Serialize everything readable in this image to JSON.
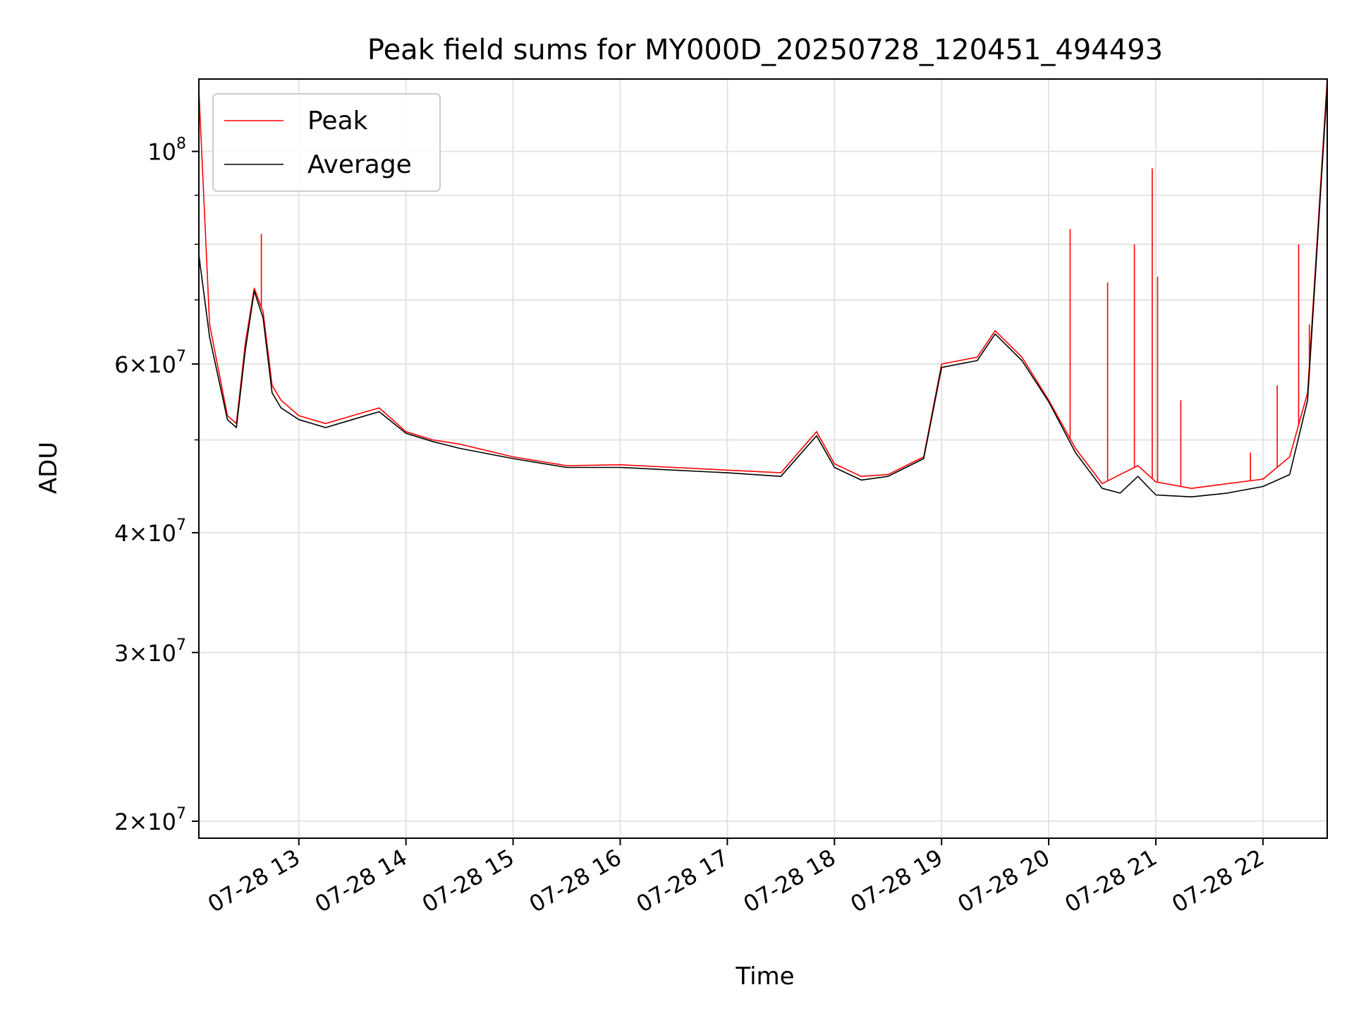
{
  "chart_data": {
    "type": "line",
    "title": "Peak field sums for MY000D_20250728_120451_494493",
    "xlabel": "Time",
    "ylabel": "ADU",
    "yscale": "log",
    "ylim": [
      19200000,
      119000000
    ],
    "xlim": [
      "07-28 12:04",
      "07-28 22:36"
    ],
    "grid": true,
    "legend_position": "upper-left",
    "x_ticks": [
      "07-28 13",
      "07-28 14",
      "07-28 15",
      "07-28 16",
      "07-28 17",
      "07-28 18",
      "07-28 19",
      "07-28 20",
      "07-28 21",
      "07-28 22"
    ],
    "y_ticks": [
      {
        "label": "10^8",
        "value": 100000000
      },
      {
        "label": "6×10^7",
        "value": 60000000
      },
      {
        "label": "4×10^7",
        "value": 40000000
      },
      {
        "label": "3×10^7",
        "value": 30000000
      },
      {
        "label": "2×10^7",
        "value": 20000000
      }
    ],
    "x": [
      "07-28 12:04",
      "07-28 12:10",
      "07-28 12:20",
      "07-28 12:25",
      "07-28 12:30",
      "07-28 12:35",
      "07-28 12:40",
      "07-28 12:45",
      "07-28 12:50",
      "07-28 13:00",
      "07-28 13:15",
      "07-28 13:30",
      "07-28 13:45",
      "07-28 14:00",
      "07-28 14:15",
      "07-28 14:30",
      "07-28 15:00",
      "07-28 15:30",
      "07-28 16:00",
      "07-28 16:30",
      "07-28 17:00",
      "07-28 17:30",
      "07-28 17:50",
      "07-28 18:00",
      "07-28 18:15",
      "07-28 18:30",
      "07-28 18:50",
      "07-28 19:00",
      "07-28 19:20",
      "07-28 19:30",
      "07-28 19:45",
      "07-28 20:00",
      "07-28 20:15",
      "07-28 20:30",
      "07-28 20:40",
      "07-28 20:50",
      "07-28 21:00",
      "07-28 21:20",
      "07-28 21:40",
      "07-28 22:00",
      "07-28 22:15",
      "07-28 22:25",
      "07-28 22:36"
    ],
    "series": [
      {
        "name": "Peak",
        "color": "#ff0000",
        "values": [
          116000000,
          66000000,
          53000000,
          52000000,
          63000000,
          72000000,
          68000000,
          57000000,
          55000000,
          53000000,
          52000000,
          53000000,
          54000000,
          51000000,
          50000000,
          49500000,
          48000000,
          47000000,
          47100000,
          46800000,
          46500000,
          46200000,
          51000000,
          47200000,
          45800000,
          46000000,
          48000000,
          60000000,
          61000000,
          65000000,
          61000000,
          55000000,
          49000000,
          45000000,
          46000000,
          47000000,
          45200000,
          44500000,
          45000000,
          45500000,
          48000000,
          56000000,
          119000000
        ],
        "spikes": [
          {
            "x": "07-28 12:39",
            "value": 82000000
          },
          {
            "x": "07-28 20:12",
            "value": 83000000
          },
          {
            "x": "07-28 20:33",
            "value": 73000000
          },
          {
            "x": "07-28 20:48",
            "value": 80000000
          },
          {
            "x": "07-28 20:58",
            "value": 96000000
          },
          {
            "x": "07-28 21:01",
            "value": 74000000
          },
          {
            "x": "07-28 21:14",
            "value": 55000000
          },
          {
            "x": "07-28 21:53",
            "value": 48500000
          },
          {
            "x": "07-28 22:08",
            "value": 57000000
          },
          {
            "x": "07-28 22:20",
            "value": 80000000
          },
          {
            "x": "07-28 22:26",
            "value": 66000000
          }
        ]
      },
      {
        "name": "Average",
        "color": "#000000",
        "values": [
          78000000,
          64000000,
          52500000,
          51500000,
          62000000,
          71500000,
          67000000,
          56000000,
          54000000,
          52500000,
          51500000,
          52500000,
          53500000,
          50800000,
          49800000,
          49000000,
          47800000,
          46800000,
          46800000,
          46500000,
          46200000,
          45800000,
          50500000,
          46800000,
          45400000,
          45800000,
          47800000,
          59500000,
          60500000,
          64500000,
          60500000,
          54800000,
          48500000,
          44500000,
          44000000,
          45800000,
          43800000,
          43600000,
          44000000,
          44700000,
          46000000,
          55000000,
          117000000
        ]
      }
    ]
  }
}
